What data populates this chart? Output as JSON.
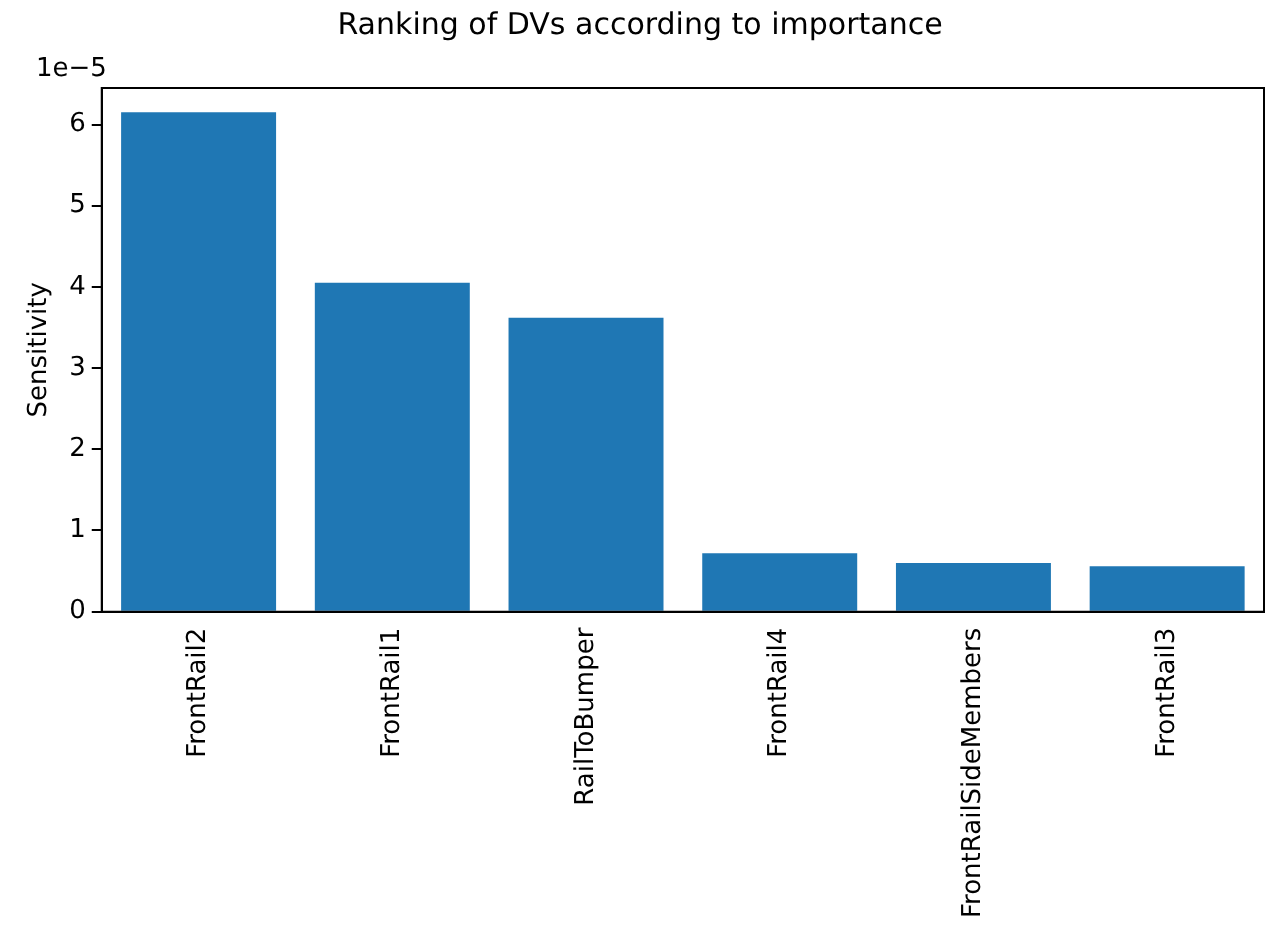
{
  "chart_data": {
    "type": "bar",
    "title": "Ranking of DVs according to importance",
    "ylabel": "Sensitivity",
    "annotations": [
      "1e−5"
    ],
    "categories": [
      "FrontRail2",
      "FrontRail1",
      "RailToBumper",
      "FrontRail4",
      "FrontRailSideMembers",
      "FrontRail3"
    ],
    "values": [
      6.15,
      4.05,
      3.62,
      0.72,
      0.6,
      0.56
    ],
    "color": "#1f77b4",
    "ylim": [
      0,
      6.45
    ],
    "yticks": [
      0,
      1,
      2,
      3,
      4,
      5,
      6
    ],
    "grid": false,
    "legend": false
  }
}
